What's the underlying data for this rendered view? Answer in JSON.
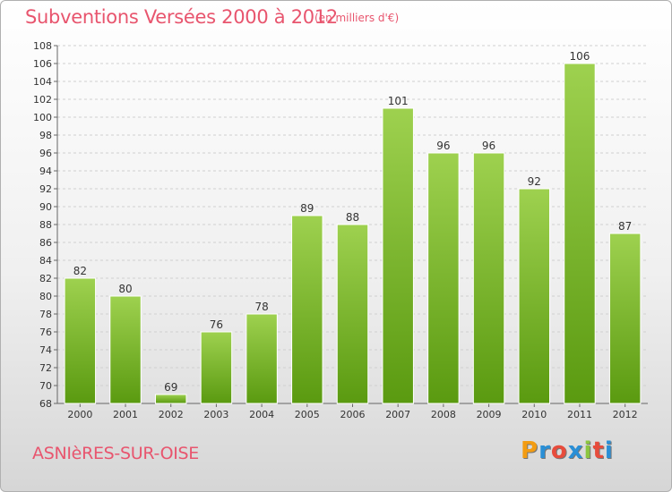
{
  "title": "Subventions Versées 2000 à 2012",
  "subtitle": "(en milliers d'€)",
  "commune": "ASNIèRES-SUR-OISE",
  "logo": {
    "letters": [
      "P",
      "r",
      "o",
      "x",
      "i",
      "t",
      "i"
    ],
    "colors": [
      "#f39c12",
      "#2a8fd6",
      "#e74c3c",
      "#2a8fd6",
      "#8cc63f",
      "#e74c3c",
      "#2a8fd6"
    ]
  },
  "colors": {
    "bar_top": "#9ed14f",
    "bar_bottom": "#5a9a10",
    "title": "#e8556e"
  },
  "chart_data": {
    "type": "bar",
    "categories": [
      "2000",
      "2001",
      "2002",
      "2003",
      "2004",
      "2005",
      "2006",
      "2007",
      "2008",
      "2009",
      "2010",
      "2011",
      "2012"
    ],
    "values": [
      82,
      80,
      69,
      76,
      78,
      89,
      88,
      101,
      96,
      96,
      92,
      106,
      87
    ],
    "ylim": [
      68,
      108
    ],
    "ytick_step": 2,
    "grid": "horizontal-dashed"
  }
}
